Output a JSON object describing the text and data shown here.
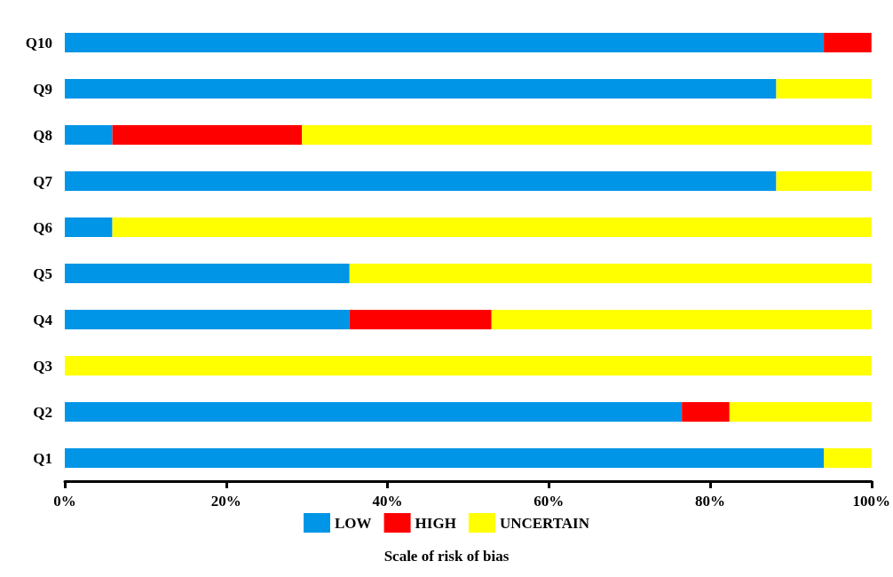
{
  "chart_data": {
    "type": "bar",
    "orientation": "horizontal",
    "stacked": true,
    "legend_title": "Scale of risk of bias",
    "categories": [
      "Q10",
      "Q9",
      "Q8",
      "Q7",
      "Q6",
      "Q5",
      "Q4",
      "Q3",
      "Q2",
      "Q1"
    ],
    "series": [
      {
        "name": "LOW",
        "color": "#0095e6",
        "values": [
          94.1,
          88.2,
          5.9,
          88.2,
          5.9,
          35.3,
          35.3,
          0,
          76.5,
          94.1
        ]
      },
      {
        "name": "HIGH",
        "color": "#ff0000",
        "values": [
          5.9,
          0,
          23.5,
          0,
          0,
          0,
          17.6,
          0,
          5.9,
          0
        ]
      },
      {
        "name": "UNCERTAIN",
        "color": "#ffff00",
        "values": [
          0,
          11.8,
          70.6,
          11.8,
          94.1,
          64.7,
          47.1,
          100,
          17.6,
          5.9
        ]
      }
    ],
    "xlim": [
      0,
      100
    ],
    "xticks": [
      {
        "value": 0,
        "label": "0%"
      },
      {
        "value": 20,
        "label": "20%"
      },
      {
        "value": 40,
        "label": "40%"
      },
      {
        "value": 60,
        "label": "60%"
      },
      {
        "value": 80,
        "label": "80%"
      },
      {
        "value": 100,
        "label": "100%"
      }
    ],
    "grid": false,
    "legend": "bottom"
  }
}
